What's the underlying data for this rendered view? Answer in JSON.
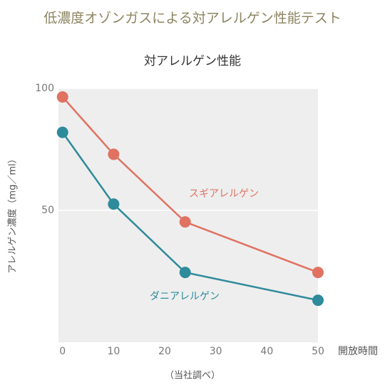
{
  "chart_data": {
    "type": "line",
    "title": "低濃度オゾンガスによる対アレルゲン性能テスト",
    "subtitle": "対アレルゲン性能",
    "y_label": "アレルゲン濃度（mg／ml）",
    "x_label": "開放時間",
    "note": "（当社調べ）",
    "x": [
      0,
      10,
      24,
      50
    ],
    "series": [
      {
        "name": "スギアレルゲン",
        "color": "#e07262",
        "values": [
          96.5,
          73,
          45.3,
          24.6
        ]
      },
      {
        "name": "ダニアレルゲン",
        "color": "#2e8b9b",
        "values": [
          82,
          52.6,
          24.6,
          13.2
        ]
      }
    ],
    "xlim": [
      -0.8,
      50
    ],
    "xticks": [
      0,
      10,
      20,
      30,
      40,
      50
    ],
    "ylim": [
      -4,
      100
    ],
    "yticks": [
      50,
      100
    ],
    "grid": true
  }
}
